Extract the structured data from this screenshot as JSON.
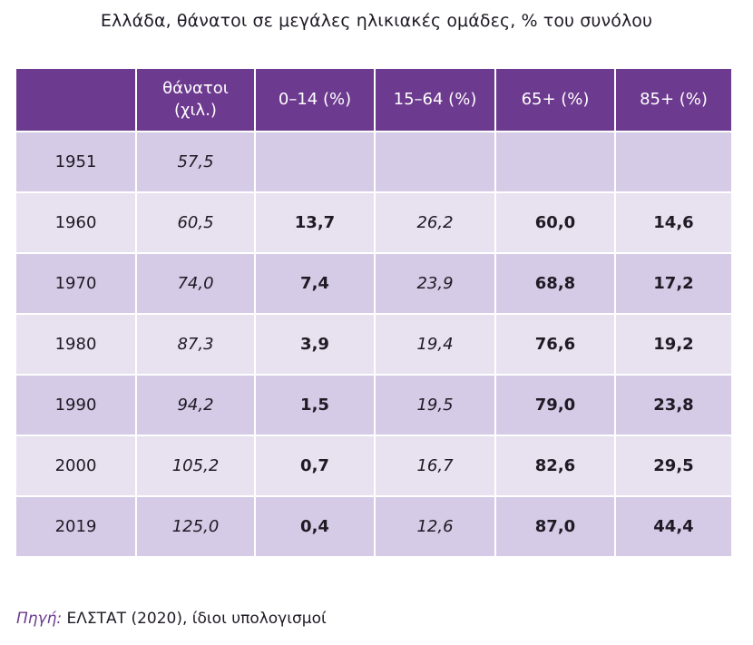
{
  "title": "Ελλάδα, θάνατοι σε μεγάλες ηλικιακές ομάδες, % του συνόλου",
  "header": {
    "year": "",
    "deaths_line1": "θάνατοι",
    "deaths_line2": "(χιλ.)",
    "age_0_14": "0–14 (%)",
    "age_15_64": "15–64 (%)",
    "age_65": "65+ (%)",
    "age_85": "85+ (%)"
  },
  "rows": [
    {
      "year": "1951",
      "deaths": "57,5",
      "age_0_14": "",
      "age_15_64": "",
      "age_65": "",
      "age_85": ""
    },
    {
      "year": "1960",
      "deaths": "60,5",
      "age_0_14": "13,7",
      "age_15_64": "26,2",
      "age_65": "60,0",
      "age_85": "14,6"
    },
    {
      "year": "1970",
      "deaths": "74,0",
      "age_0_14": "7,4",
      "age_15_64": "23,9",
      "age_65": "68,8",
      "age_85": "17,2"
    },
    {
      "year": "1980",
      "deaths": "87,3",
      "age_0_14": "3,9",
      "age_15_64": "19,4",
      "age_65": "76,6",
      "age_85": "19,2"
    },
    {
      "year": "1990",
      "deaths": "94,2",
      "age_0_14": "1,5",
      "age_15_64": "19,5",
      "age_65": "79,0",
      "age_85": "23,8"
    },
    {
      "year": "2000",
      "deaths": "105,2",
      "age_0_14": "0,7",
      "age_15_64": "16,7",
      "age_65": "82,6",
      "age_85": "29,5"
    },
    {
      "year": "2019",
      "deaths": "125,0",
      "age_0_14": "0,4",
      "age_15_64": "12,6",
      "age_65": "87,0",
      "age_85": "44,4"
    }
  ],
  "source": {
    "label": "Πηγή:",
    "text": " ΕΛΣΤΑΤ (2020), ίδιοι υπολογισμοί"
  },
  "colors": {
    "header_bg": "#6c3a8e",
    "row_odd": "#d5cbe6",
    "row_even": "#e7e1f0"
  },
  "chart_data": {
    "type": "table",
    "title": "Ελλάδα, θάνατοι σε μεγάλες ηλικιακές ομάδες, % του συνόλου",
    "columns": [
      "",
      "θάνατοι (χιλ.)",
      "0–14 (%)",
      "15–64 (%)",
      "65+ (%)",
      "85+ (%)"
    ],
    "categories": [
      "1951",
      "1960",
      "1970",
      "1980",
      "1990",
      "2000",
      "2019"
    ],
    "series": [
      {
        "name": "θάνατοι (χιλ.)",
        "values": [
          57.5,
          60.5,
          74.0,
          87.3,
          94.2,
          105.2,
          125.0
        ]
      },
      {
        "name": "0–14 (%)",
        "values": [
          null,
          13.7,
          7.4,
          3.9,
          1.5,
          0.7,
          0.4
        ]
      },
      {
        "name": "15–64 (%)",
        "values": [
          null,
          26.2,
          23.9,
          19.4,
          19.5,
          16.7,
          12.6
        ]
      },
      {
        "name": "65+ (%)",
        "values": [
          null,
          60.0,
          68.8,
          76.6,
          79.0,
          82.6,
          87.0
        ]
      },
      {
        "name": "85+ (%)",
        "values": [
          null,
          14.6,
          17.2,
          19.2,
          23.8,
          29.5,
          44.4
        ]
      }
    ]
  }
}
